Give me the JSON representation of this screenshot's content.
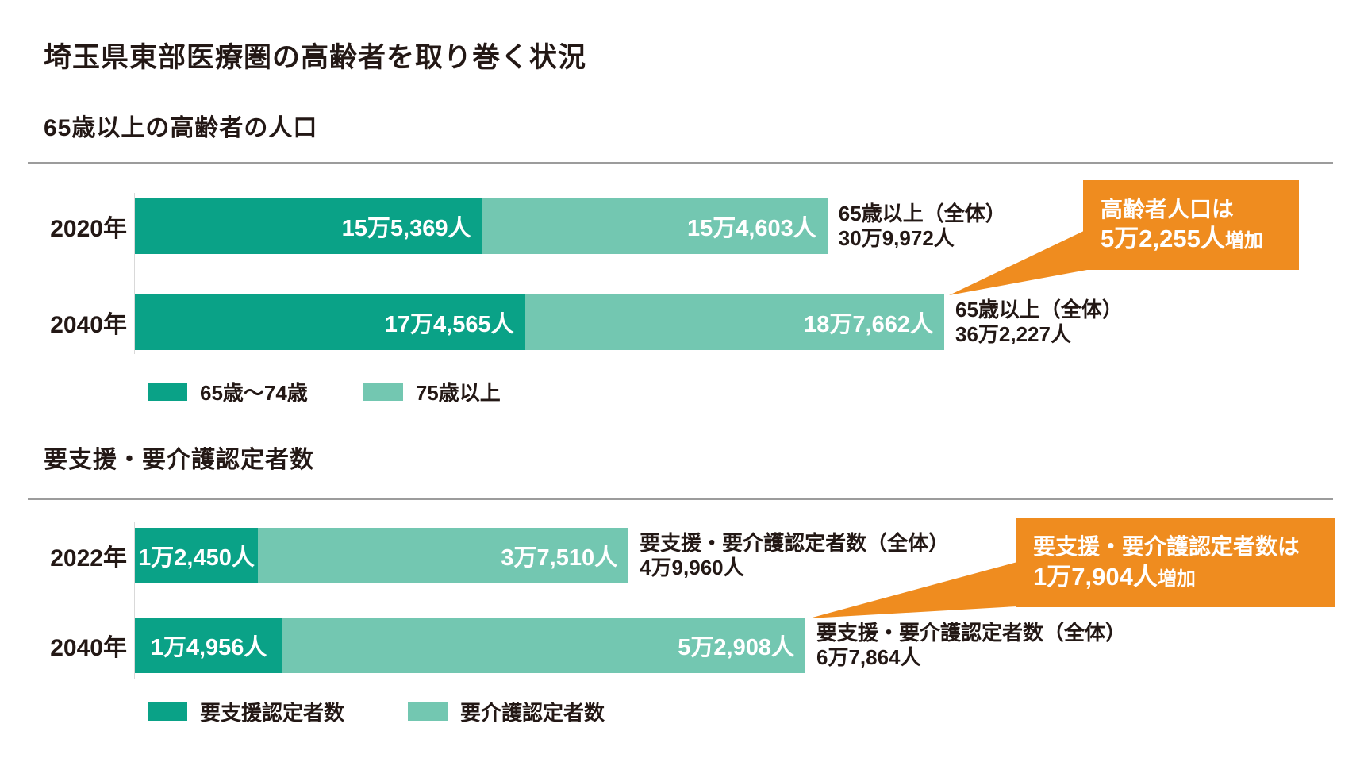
{
  "page": {
    "title": "埼玉県東部医療圏の高齢者を取り巻く状況"
  },
  "colors": {
    "bar_dark_green": "#0AA287",
    "bar_light_green": "#73C7B1",
    "annotation_orange": "#EF8C1F",
    "text_dark": "#231815",
    "rule_gray": "#9C9C9C",
    "bar_value_text": "#FFFFFF"
  },
  "chart_data": [
    {
      "type": "bar",
      "orientation": "horizontal",
      "stacked": true,
      "title": "65歳以上の高齢者の人口",
      "categories": [
        "2020年",
        "2040年"
      ],
      "series": [
        {
          "name": "65歳〜74歳",
          "color": "#0AA287",
          "values": [
            155369,
            174565
          ],
          "value_labels": [
            "15万5,369人",
            "17万4,565人"
          ]
        },
        {
          "name": "75歳以上",
          "color": "#73C7B1",
          "values": [
            154603,
            187662
          ],
          "value_labels": [
            "15万4,603人",
            "18万7,662人"
          ]
        }
      ],
      "totals": {
        "captions": [
          "65歳以上（全体）",
          "65歳以上（全体）"
        ],
        "value_labels": [
          "30万9,972人",
          "36万2,227人"
        ],
        "values": [
          309972,
          362227
        ]
      },
      "xlim": [
        0,
        362227
      ],
      "grid": false,
      "legend_position": "bottom-left",
      "legend": [
        "65歳〜74歳",
        "75歳以上"
      ],
      "annotation": {
        "line1": "高齢者人口は",
        "value_label": "5万2,255人",
        "suffix": "増加",
        "increase_value": 52255
      }
    },
    {
      "type": "bar",
      "orientation": "horizontal",
      "stacked": true,
      "title": "要支援・要介護認定者数",
      "categories": [
        "2022年",
        "2040年"
      ],
      "series": [
        {
          "name": "要支援認定者数",
          "color": "#0AA287",
          "values": [
            12450,
            14956
          ],
          "value_labels": [
            "1万2,450人",
            "1万4,956人"
          ]
        },
        {
          "name": "要介護認定者数",
          "color": "#73C7B1",
          "values": [
            37510,
            52908
          ],
          "value_labels": [
            "3万7,510人",
            "5万2,908人"
          ]
        }
      ],
      "totals": {
        "captions": [
          "要支援・要介護認定者数（全体）",
          "要支援・要介護認定者数（全体）"
        ],
        "value_labels": [
          "4万9,960人",
          "6万7,864人"
        ],
        "values": [
          49960,
          67864
        ]
      },
      "xlim": [
        0,
        67864
      ],
      "grid": false,
      "legend_position": "bottom-left",
      "legend": [
        "要支援認定者数",
        "要介護認定者数"
      ],
      "annotation": {
        "line1": "要支援・要介護認定者数は",
        "value_label": "1万7,904人",
        "suffix": "増加",
        "increase_value": 17904
      }
    }
  ]
}
